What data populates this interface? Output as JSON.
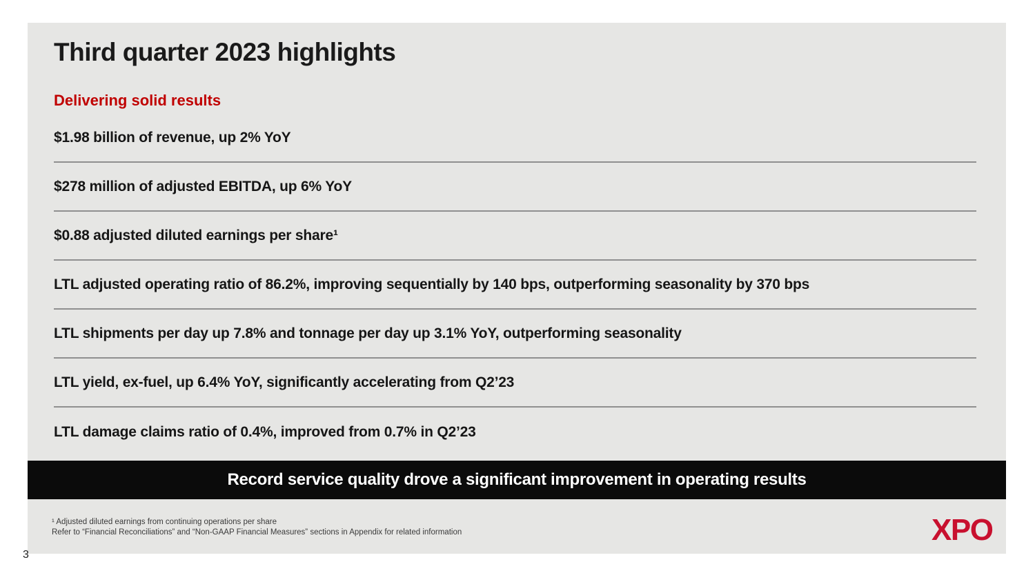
{
  "slide": {
    "title": "Third quarter 2023 highlights",
    "subtitle": "Delivering solid results",
    "page_number": "3"
  },
  "highlights": [
    "$1.98 billion of revenue, up 2% YoY",
    "$278 million of adjusted EBITDA, up 6% YoY",
    "$0.88 adjusted diluted earnings per share¹",
    "LTL adjusted operating ratio of 86.2%, improving sequentially by 140 bps, outperforming seasonality by 370 bps",
    "LTL shipments per day up 7.8% and tonnage per day up 3.1% YoY, outperforming seasonality",
    "LTL yield, ex-fuel, up 6.4% YoY, significantly accelerating from Q2’23",
    "LTL damage claims ratio of 0.4%, improved from 0.7% in Q2’23"
  ],
  "banner": {
    "text": "Record service quality drove a significant improvement in operating results"
  },
  "footnotes": [
    "¹ Adjusted diluted earnings from continuing operations per share",
    "Refer to “Financial Reconciliations” and “Non-GAAP Financial Measures” sections in Appendix for related information"
  ],
  "logo": {
    "text": "XPO"
  },
  "colors": {
    "slide_background": "#E6E6E4",
    "accent_red": "#C00101",
    "logo_red": "#C8102E",
    "banner_background": "#0B0B0B",
    "divider_gray": "#8F8F8F"
  }
}
